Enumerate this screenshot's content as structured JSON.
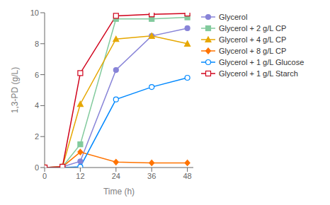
{
  "chart_data": {
    "type": "line",
    "title": "",
    "xlabel": "Time (h)",
    "ylabel": "1,3-PD (g/L)",
    "xlim": [
      0,
      50
    ],
    "ylim": [
      0,
      10
    ],
    "xticks": [
      0,
      12,
      24,
      36,
      48
    ],
    "yticks": [
      0,
      2,
      4,
      6,
      8,
      10
    ],
    "grid": false,
    "legend": "right",
    "series": [
      {
        "name": "Glycerol",
        "x": [
          0,
          6,
          12,
          24,
          36,
          48
        ],
        "values": [
          0,
          0.05,
          0.4,
          6.3,
          8.5,
          9.0
        ],
        "marker": "circle",
        "line_style": "solid",
        "color": "#8884d8"
      },
      {
        "name": "Glycerol + 2 g/L CP",
        "x": [
          0,
          6,
          12,
          24,
          36,
          48
        ],
        "values": [
          0,
          0.05,
          1.5,
          9.6,
          9.6,
          9.7
        ],
        "marker": "square",
        "line_style": "solid",
        "color": "#82ca9d"
      },
      {
        "name": "Glycerol + 4 g/L CP",
        "x": [
          0,
          6,
          12,
          24,
          36,
          48
        ],
        "values": [
          0,
          0.05,
          4.1,
          8.3,
          8.5,
          8.0
        ],
        "marker": "triangle",
        "line_style": "solid",
        "color": "#e6a700"
      },
      {
        "name": "Glycerol + 8 g/L CP",
        "x": [
          0,
          6,
          12,
          24,
          36,
          48
        ],
        "values": [
          0,
          0.05,
          1.0,
          0.35,
          0.3,
          0.3
        ],
        "marker": "diamond",
        "line_style": "solid",
        "color": "#ff7300"
      },
      {
        "name": "Glycerol + 1 g/L Glucose",
        "x": [
          0,
          6,
          12,
          24,
          36,
          48
        ],
        "values": [
          0,
          0.0,
          0.05,
          4.4,
          5.2,
          5.8
        ],
        "marker": "circle-open",
        "line_style": "solid",
        "color": "#0088fe"
      },
      {
        "name": "Glycerol + 1 g/L Starch",
        "x": [
          0,
          6,
          12,
          24,
          36,
          48
        ],
        "values": [
          0,
          0.05,
          6.1,
          9.8,
          9.9,
          9.95
        ],
        "marker": "square-open",
        "line_style": "solid",
        "color": "#d0021b"
      }
    ]
  }
}
